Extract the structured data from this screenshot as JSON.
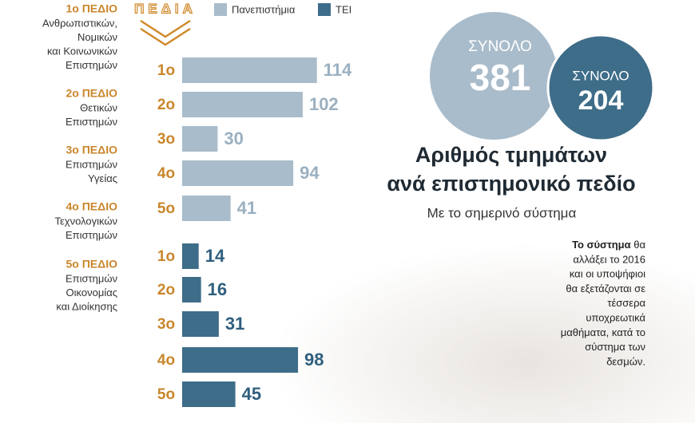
{
  "chart_data": {
    "type": "bar",
    "title_lines": [
      "Αριθμός τμημάτων",
      "ανά επιστημονικό πεδίο"
    ],
    "subtitle": "Με το σημερινό σύστημα",
    "header": "ΠΕΔΙΑ",
    "categories": [
      "1ο",
      "2ο",
      "3ο",
      "4ο",
      "5ο"
    ],
    "series": [
      {
        "name": "Πανεπιστήμια",
        "color": "#a9bccb",
        "label_color": "#9bb0c0",
        "values": [
          114,
          102,
          30,
          94,
          41
        ]
      },
      {
        "name": "ΤΕΙ",
        "color": "#3e6d89",
        "label_color": "#2f5f7e",
        "values": [
          14,
          16,
          31,
          98,
          45
        ]
      }
    ],
    "totals": [
      {
        "label": "ΣΥΝΟΛΟ",
        "value": 381
      },
      {
        "label": "ΣΥΝΟΛΟ",
        "value": 204
      }
    ],
    "fields": [
      {
        "label": "1ο ΠΕΔΙΟ",
        "lines": [
          "Ανθρωπιστικών,",
          "Νομικών",
          "και Κοινωνικών",
          "Επιστημών"
        ]
      },
      {
        "label": "2ο ΠΕΔΙΟ",
        "lines": [
          "Θετικών",
          "Επιστημών"
        ]
      },
      {
        "label": "3ο ΠΕΔΙΟ",
        "lines": [
          "Επιστημών",
          "Υγείας"
        ]
      },
      {
        "label": "4ο ΠΕΔΙΟ",
        "lines": [
          "Τεχνολογικών",
          "Επιστημών"
        ]
      },
      {
        "label": "5ο ΠΕΔΙΟ",
        "lines": [
          "Επιστημών",
          "Οικονομίας",
          "και Διοίκησης"
        ]
      }
    ],
    "note": {
      "lead": "Το σύστημα",
      "lines": [
        " θα",
        "αλλάξει το 2016",
        "και οι υποψήφιοι",
        "θα εξετάζονται σε",
        "τέσσερα",
        "υποχρεωτικά",
        "μαθήματα, κατά το",
        "σύστημα των",
        "δεσμών."
      ]
    }
  }
}
